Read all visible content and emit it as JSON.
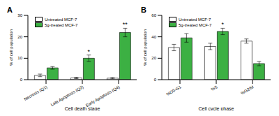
{
  "chart_data": [
    {
      "type": "bar",
      "title": "A",
      "x_label": "Cell death stage",
      "y_label": "% of cell population",
      "categories": [
        "Necrosis (Q1)",
        "Late Apoptosis (Q2)",
        "Early Apoptosis (Q4)"
      ],
      "series": [
        {
          "name": "Untreated MCF-7",
          "color": "#ffffff",
          "values": [
            2,
            0.8,
            0.7
          ],
          "error": [
            0.6,
            0.3,
            0.3
          ]
        },
        {
          "name": "5g-treated MCF-7",
          "color": "#3cb043",
          "values": [
            5.5,
            10,
            22
          ],
          "error": [
            0.6,
            1.5,
            2
          ]
        }
      ],
      "annotations": [
        {
          "text": "*",
          "category": "Late Apoptosis (Q2)",
          "series": "5g-treated MCF-7"
        },
        {
          "text": "**",
          "category": "Early Apoptosis (Q4)",
          "series": "5g-treated MCF-7"
        }
      ],
      "ylim": [
        0,
        30
      ],
      "yticks": [
        0,
        10,
        20,
        30
      ],
      "legend": "upper left"
    },
    {
      "type": "bar",
      "title": "B",
      "x_label": "Cell cycle phase",
      "y_label": "% of cell population",
      "categories": [
        "%G0-G1",
        "%S",
        "%G2/M"
      ],
      "series": [
        {
          "name": "Untreated MCF-7",
          "color": "#ffffff",
          "values": [
            30,
            31,
            36
          ],
          "error": [
            3,
            3,
            2
          ]
        },
        {
          "name": "5g-treated MCF-7",
          "color": "#3cb043",
          "values": [
            39,
            45,
            15
          ],
          "error": [
            4,
            3,
            2
          ]
        }
      ],
      "annotations": [
        {
          "text": "*",
          "category": "%S",
          "series": "5g-treated MCF-7"
        }
      ],
      "ylim": [
        0,
        60
      ],
      "yticks": [
        0,
        20,
        40,
        60
      ],
      "legend": "upper left"
    }
  ]
}
